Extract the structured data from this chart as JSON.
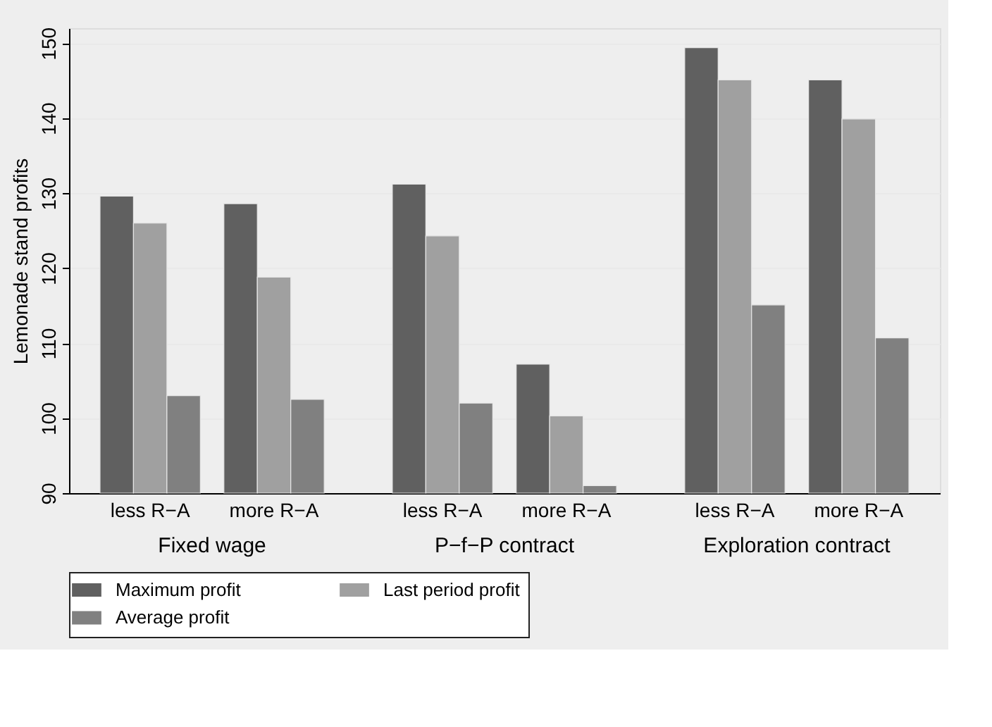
{
  "chart_data": {
    "type": "bar",
    "ylabel": "Lemonade stand profits",
    "categories": [
      "less R−A",
      "more R−A",
      "less R−A",
      "more R−A",
      "less R−A",
      "more R−A"
    ],
    "annotations": [
      "Fixed wage",
      "P−f−P contract",
      "Exploration contract"
    ],
    "series": [
      {
        "name": "Maximum profit",
        "color": "#606060",
        "values": [
          129.6,
          128.6,
          131.2,
          107.2,
          149.4,
          145.1
        ]
      },
      {
        "name": "Last period profit",
        "color": "#a0a0a0",
        "values": [
          126.0,
          118.8,
          124.3,
          100.3,
          145.1,
          139.9
        ]
      },
      {
        "name": "Average profit",
        "color": "#808080",
        "values": [
          103.0,
          102.5,
          102.0,
          91.0,
          115.1,
          110.7
        ]
      }
    ],
    "ylim": [
      90,
      152
    ],
    "yticks": [
      90,
      100,
      110,
      120,
      130,
      140,
      150
    ],
    "grid": "y",
    "legend": "bottom"
  }
}
